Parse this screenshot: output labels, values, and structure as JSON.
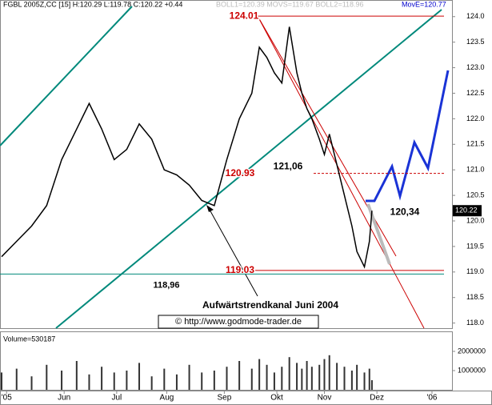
{
  "chart_data": [
    {
      "type": "line",
      "title": "FGBL 2005Z,CC [15] H:120.29 L:119.78 C:120.22 +0.44",
      "subtitle": "BOLL1=120.39 MOVS=119.67 BOLL2=118.96",
      "indicator_label": "MovE=120.77",
      "last_price": "120.22",
      "x": [
        0,
        6,
        12,
        18,
        24,
        30,
        35,
        40,
        45,
        50,
        55,
        60,
        65,
        70,
        75,
        80,
        85,
        90,
        95,
        100,
        103,
        106,
        109,
        112,
        115,
        118,
        120,
        122,
        124,
        127,
        129,
        131,
        134,
        137,
        140,
        142,
        145,
        147,
        148
      ],
      "values": [
        119.3,
        119.6,
        119.9,
        120.3,
        121.2,
        121.8,
        122.3,
        121.8,
        121.2,
        121.4,
        121.9,
        121.6,
        121.0,
        120.9,
        120.7,
        120.4,
        120.3,
        121.2,
        122.0,
        122.5,
        123.4,
        123.2,
        122.9,
        122.7,
        123.8,
        122.9,
        122.5,
        122.2,
        122.0,
        121.6,
        121.3,
        121.7,
        121.1,
        120.5,
        119.9,
        119.4,
        119.1,
        119.6,
        120.2
      ],
      "color": "#000000",
      "xlim": [
        0,
        180
      ],
      "xticks": [
        {
          "value": 2,
          "label": "'05"
        },
        {
          "value": 25,
          "label": "Jun"
        },
        {
          "value": 46,
          "label": "Jul"
        },
        {
          "value": 66,
          "label": "Aug"
        },
        {
          "value": 89,
          "label": "Sep"
        },
        {
          "value": 110,
          "label": "Okt"
        },
        {
          "value": 129,
          "label": "Nov"
        },
        {
          "value": 150,
          "label": "Dez"
        },
        {
          "value": 172,
          "label": "'06"
        }
      ],
      "ylim": [
        117.9,
        124.2
      ],
      "yticks": [
        {
          "value": 118,
          "label": "118.0"
        },
        {
          "value": 118.5,
          "label": "118.5"
        },
        {
          "value": 119,
          "label": "119.0"
        },
        {
          "value": 119.5,
          "label": "119.5"
        },
        {
          "value": 120,
          "label": "120.0"
        },
        {
          "value": 120.5,
          "label": "120.5"
        },
        {
          "value": 121,
          "label": "121.0"
        },
        {
          "value": 121.5,
          "label": "121.5"
        },
        {
          "value": 122,
          "label": "122.0"
        },
        {
          "value": 122.5,
          "label": "122.5"
        },
        {
          "value": 123,
          "label": "123.0"
        },
        {
          "value": 123.5,
          "label": "123.5"
        },
        {
          "value": 124,
          "label": "124.0"
        }
      ],
      "annotations": [
        {
          "text": "124.01",
          "value": 124.01
        },
        {
          "text": "120.93",
          "value": 120.93
        },
        {
          "text": "119.03",
          "value": 119.03
        },
        {
          "text": "118,96",
          "value": 118.96
        },
        {
          "text": "121,06",
          "value": 121.06
        },
        {
          "text": "120,34",
          "value": 120.34
        },
        {
          "text": "Aufwärtstrendkanal Juni 2004"
        },
        {
          "text": "© http://www.godmode-trader.de"
        }
      ]
    },
    {
      "type": "bar",
      "title": "Volume=530187",
      "x": [
        0,
        6,
        12,
        18,
        24,
        30,
        35,
        40,
        45,
        50,
        55,
        60,
        65,
        70,
        75,
        80,
        85,
        90,
        95,
        100,
        103,
        106,
        109,
        112,
        115,
        118,
        120,
        122,
        124,
        127,
        129,
        131,
        134,
        137,
        140,
        142,
        145,
        147,
        148
      ],
      "values": [
        900000,
        1100000,
        700000,
        1300000,
        1000000,
        1500000,
        800000,
        1200000,
        900000,
        1000000,
        1400000,
        700000,
        1100000,
        800000,
        1300000,
        900000,
        1000000,
        1200000,
        1500000,
        1100000,
        1600000,
        1300000,
        900000,
        1200000,
        1700000,
        1400000,
        1100000,
        1500000,
        1200000,
        1300000,
        1600000,
        1800000,
        1400000,
        1200000,
        1000000,
        1300000,
        900000,
        1100000,
        500000
      ],
      "color": "#333333",
      "ylim": [
        0,
        3000000
      ],
      "yticks": [
        1000000,
        2000000
      ]
    }
  ]
}
